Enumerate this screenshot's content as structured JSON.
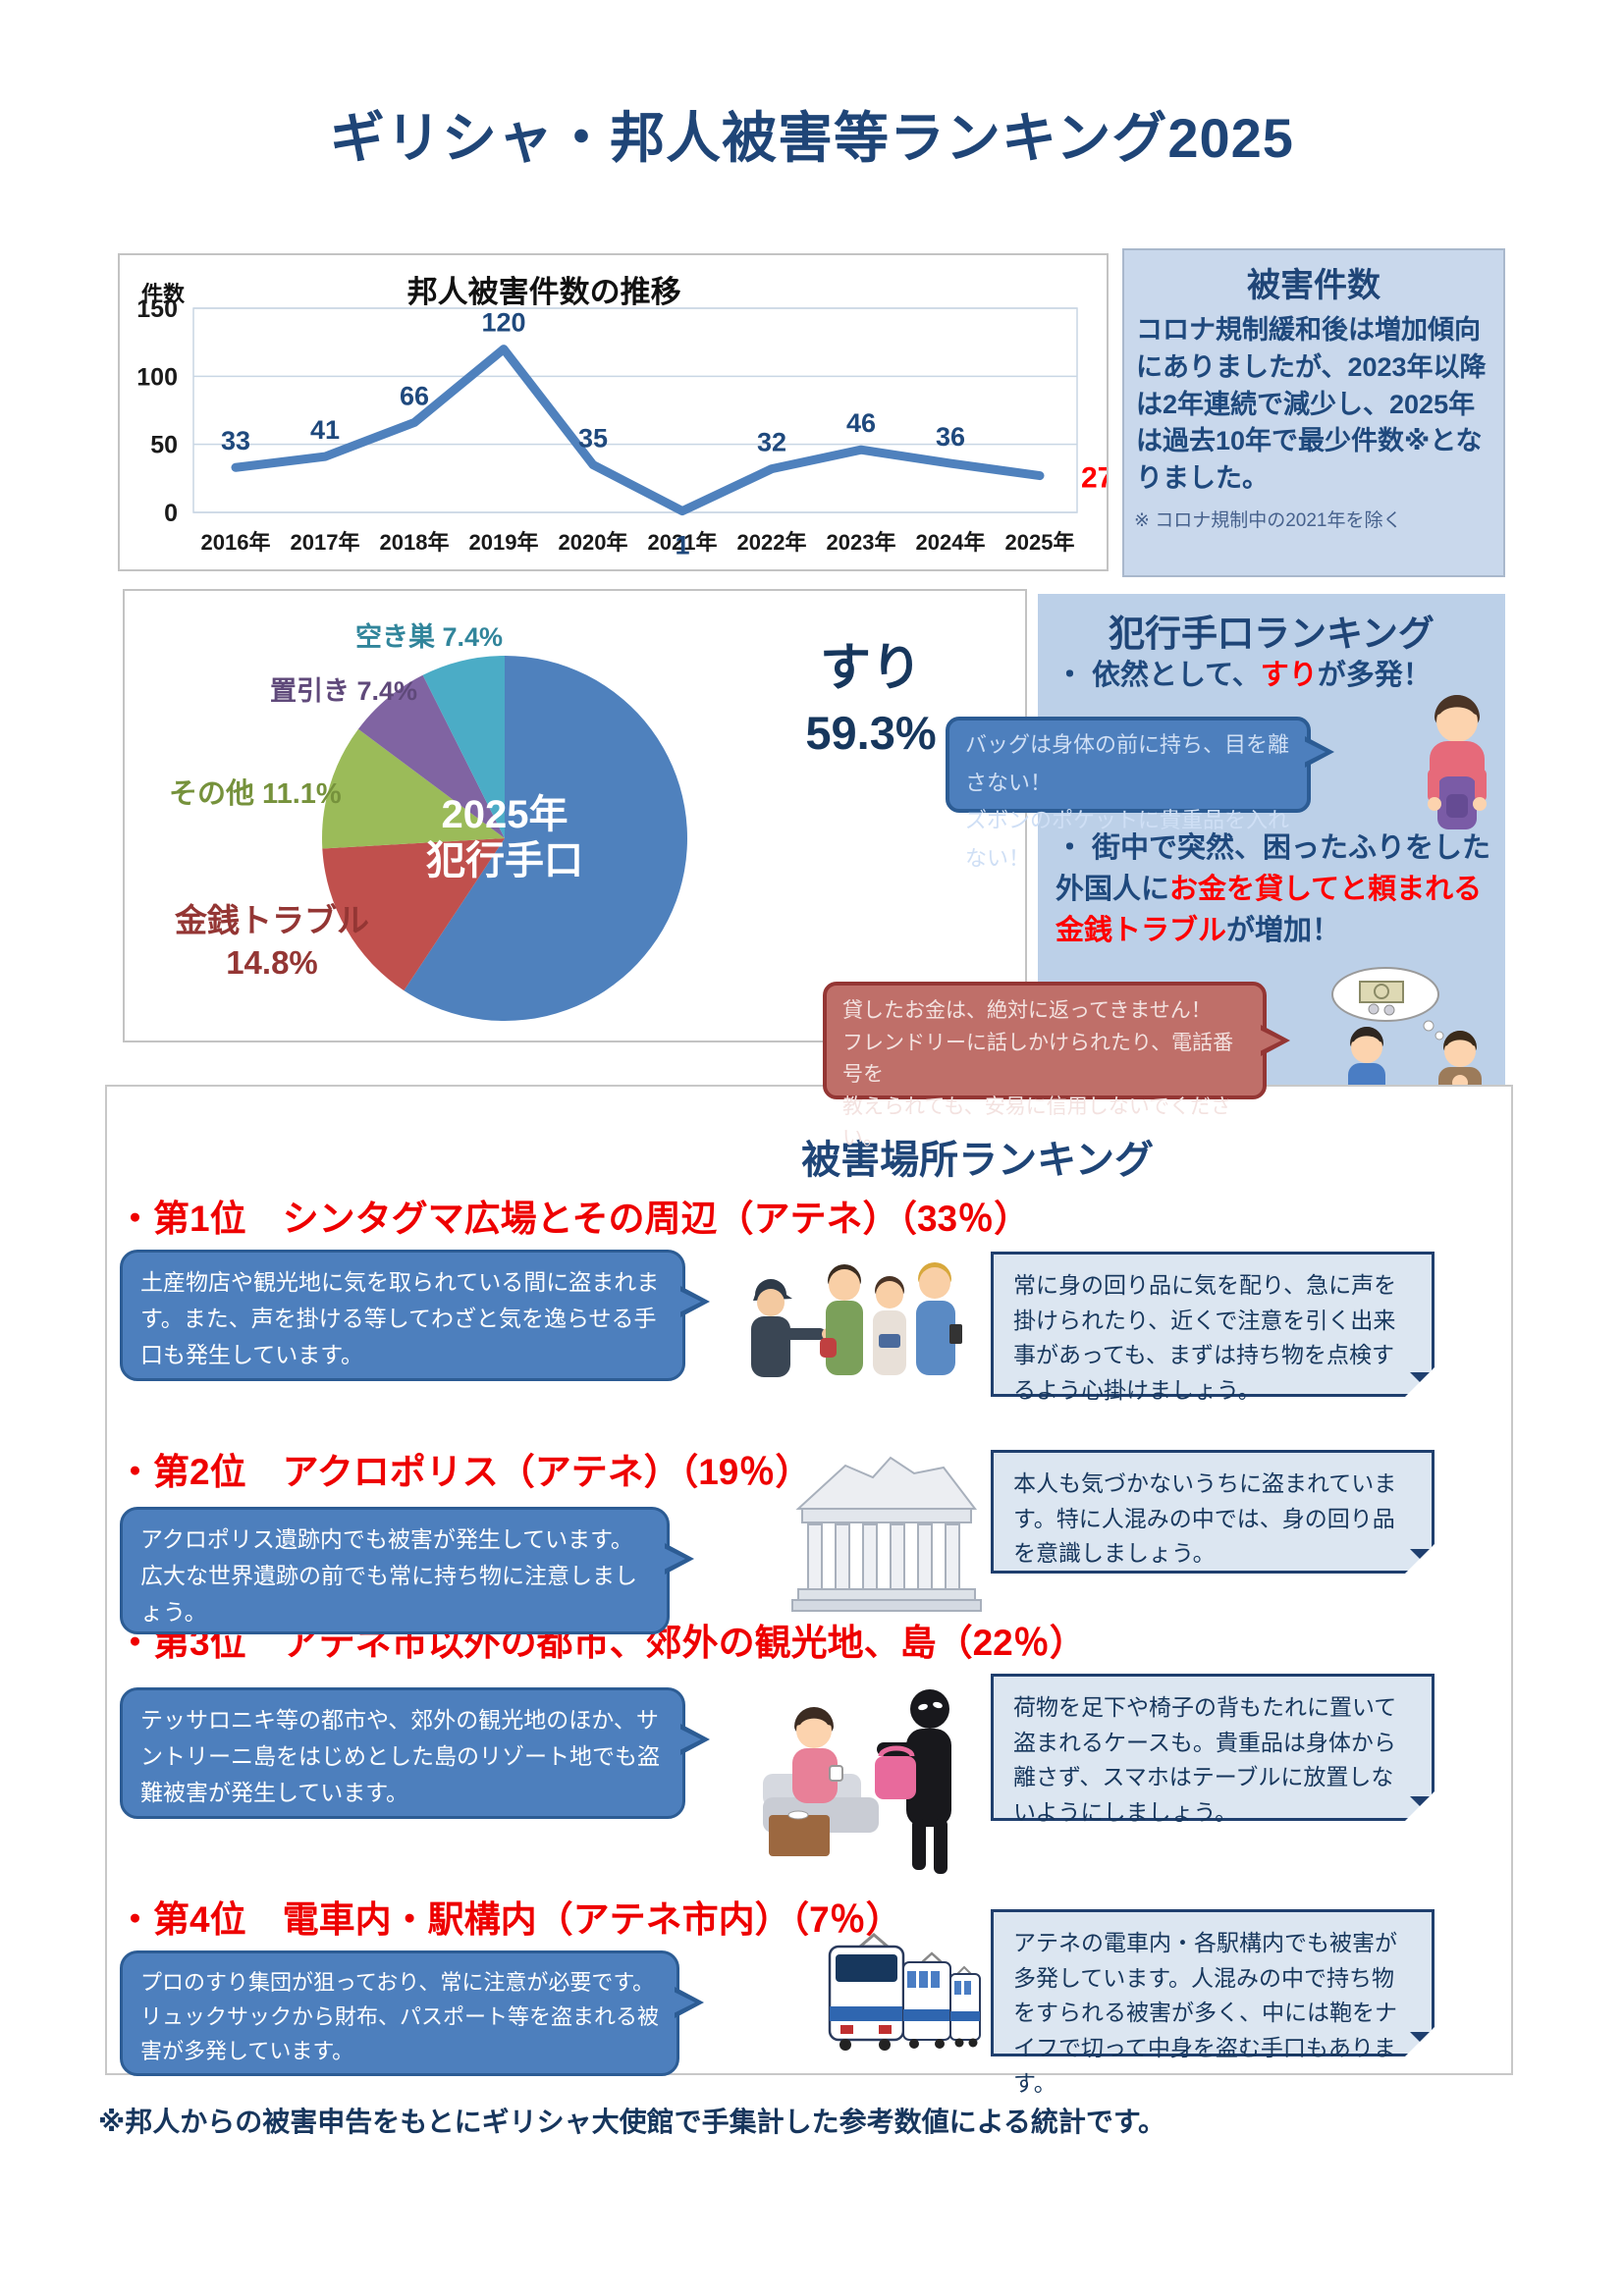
{
  "page": {
    "title": "ギリシャ・邦人被害等ランキング2025",
    "footer": "※邦人からの被害申告をもとにギリシャ大使館で手集計した参考数値による統計です。"
  },
  "chart_data": [
    {
      "type": "line",
      "title": "邦人被害件数の推移",
      "ylabel": "件数",
      "categories": [
        "2016年",
        "2017年",
        "2018年",
        "2019年",
        "2020年",
        "2021年",
        "2022年",
        "2023年",
        "2024年",
        "2025年"
      ],
      "values": [
        33,
        41,
        66,
        120,
        35,
        1,
        32,
        46,
        36,
        27
      ],
      "ylim": [
        0,
        150
      ],
      "yticks": [
        0,
        50,
        100,
        150
      ],
      "grid": true,
      "legend_position": "none",
      "line_color": "#4F81BD",
      "label_color": "#1F497D",
      "last_label_color": "#FF0000"
    },
    {
      "type": "pie",
      "title": "2025年犯行手口",
      "labels": [
        "すり",
        "金銭トラブル",
        "その他",
        "置引き",
        "空き巣"
      ],
      "values": [
        59.3,
        14.8,
        11.1,
        7.4,
        7.4
      ],
      "colors": [
        "#4F81BD",
        "#C0504D",
        "#9BBB59",
        "#8064A2",
        "#4BACC6"
      ],
      "start_angle_deg": 0,
      "direction": "clockwise",
      "center_label": "2025年\n犯行手口"
    }
  ],
  "incident_box": {
    "title": "被害件数",
    "body": "コロナ規制緩和後は増加傾向にありましたが、2023年以降は2年連続で減少し、2025年は過去10年で最少件数※となりました。",
    "footnote": "※ コロナ規制中の2021年を除く"
  },
  "pie_panel": {
    "label_akisu": "空き巣 7.4%",
    "label_okibiki": "置引き 7.4%",
    "label_sonota": "その他 11.1%",
    "label_kinsen": "金銭トラブル\n14.8%",
    "label_suri": "すり",
    "label_suri_pct": "59.3%",
    "center_line1": "2025年",
    "center_line2": "犯行手口"
  },
  "method_panel": {
    "title": "犯行手口ランキング",
    "bullet1_pre": "・ 依然として、",
    "bullet1_red": "すり",
    "bullet1_post": "が多発！",
    "bubble_blue": "バッグは身体の前に持ち、目を離さない！\nズボンのポケットに貴重品を入れない！",
    "bullet2_pre": "・ 街中で突然、困ったふりをした外国人に",
    "bullet2_red": "お金を貸してと頼まれる金銭トラブル",
    "bullet2_post": "が増加！",
    "bubble_red": "貸したお金は、絶対に返ってきません！\nフレンドリーに話しかけられたり、電話番号を\n教えられても、安易に信用しないでください。"
  },
  "location_panel": {
    "title": "被害場所ランキング",
    "items": [
      {
        "rank_title": "・第1位　シンタグマ広場とその周辺（アテネ）（33％）",
        "bubble": "土産物店や観光地に気を取られている間に盗まれます。また、声を掛ける等してわざと気を逸らせる手口も発生しています。",
        "note": "常に身の回り品に気を配り、急に声を掛けられたり、近くで注意を引く出来事があっても、まずは持ち物を点検するよう心掛けましょう。"
      },
      {
        "rank_title": "・第2位　アクロポリス（アテネ）（19％）",
        "bubble": "アクロポリス遺跡内でも被害が発生しています。広大な世界遺跡の前でも常に持ち物に注意しましょう。",
        "note": "本人も気づかないうちに盗まれています。特に人混みの中では、身の回り品を意識しましょう。"
      },
      {
        "rank_title": "・第3位　アテネ市以外の都市、郊外の観光地、島（22％）",
        "bubble": "テッサロニキ等の都市や、郊外の観光地のほか、サントリーニ島をはじめとした島のリゾート地でも盗難被害が発生しています。",
        "note": "荷物を足下や椅子の背もたれに置いて盗まれるケースも。貴重品は身体から離さず、スマホはテーブルに放置しないようにしましょう。"
      },
      {
        "rank_title": "・第4位　電車内・駅構内（アテネ市内）（7％）",
        "bubble": "プロのすり集団が狙っており、常に注意が必要です。リュックサックから財布、パスポート等を盗まれる被害が多発しています。",
        "note": "アテネの電車内・各駅構内でも被害が多発しています。人混みの中で持ち物をすられる被害が多く、中には鞄をナイフで切って中身を盗む手口もあります。"
      }
    ]
  }
}
